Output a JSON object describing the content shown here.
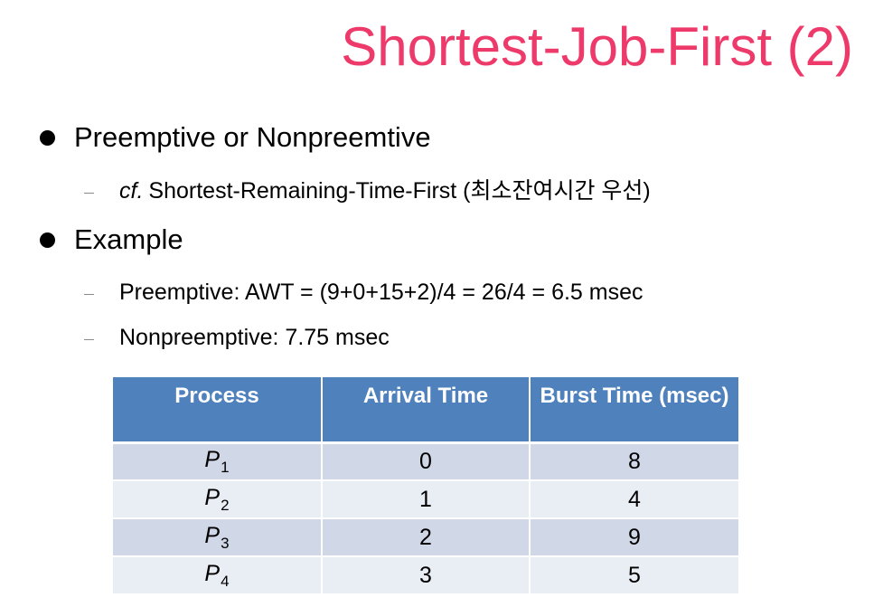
{
  "slide": {
    "title": "Shortest-Job-First (2)",
    "accent_color": "#ee3a6a",
    "table_header_color": "#4f81bd"
  },
  "bullets": [
    {
      "text": "Preemptive or Nonpreemtive",
      "subs": [
        {
          "prefix": "cf.",
          "text": "Shortest-Remaining-Time-First (최소잔여시간 우선)"
        }
      ]
    },
    {
      "text": "Example",
      "subs": [
        {
          "text": "Preemptive: AWT = (9+0+15+2)/4 = 26/4 = 6.5 msec"
        },
        {
          "text": "Nonpreemptive: 7.75 msec"
        }
      ]
    }
  ],
  "table": {
    "headers": [
      "Process",
      "Arrival Time",
      "Burst Time (msec)"
    ],
    "rows": [
      {
        "process": "P",
        "sub": "1",
        "arrival": "0",
        "burst": "8"
      },
      {
        "process": "P",
        "sub": "2",
        "arrival": "1",
        "burst": "4"
      },
      {
        "process": "P",
        "sub": "3",
        "arrival": "2",
        "burst": "9"
      },
      {
        "process": "P",
        "sub": "4",
        "arrival": "3",
        "burst": "5"
      }
    ]
  }
}
